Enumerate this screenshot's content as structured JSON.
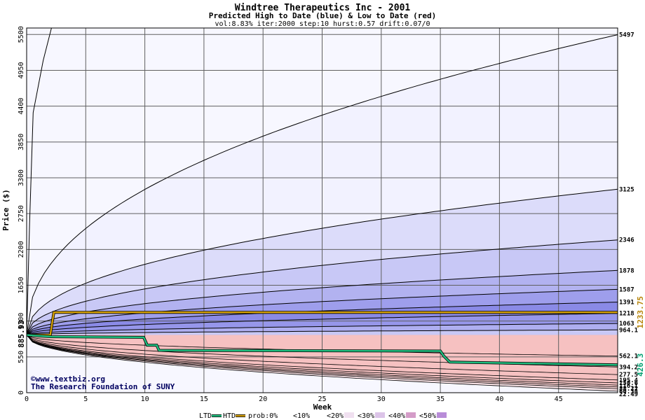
{
  "chart_data": {
    "type": "area",
    "title": "Windtree Therapeutics Inc - 2001",
    "subtitle": "Predicted High to Date (blue) &  Low to Date (red)",
    "params": "vol:8.83% iter:2000 step:10 hurst:0.57 drift:0.07/0",
    "xlabel": "Week",
    "ylabel": "Price ($)",
    "xlim": [
      0,
      50
    ],
    "ylim": [
      0,
      5600
    ],
    "x_ticks": [
      0,
      5,
      10,
      15,
      20,
      25,
      30,
      35,
      40,
      45
    ],
    "y_ticks": [
      0,
      550,
      1100,
      1650,
      2200,
      2750,
      3300,
      3850,
      4400,
      4950,
      5500
    ],
    "start_price": 885.93,
    "start_price_label": "885.93",
    "credit_lines": [
      "©www.textbiz.org",
      "The Research Foundation of SUNY"
    ],
    "right_value_labels": [
      {
        "label": "1233.75",
        "value": 1233.75,
        "color": "#b8860b"
      },
      {
        "label": "426.3",
        "value": 426.3,
        "color": "#00a070"
      }
    ],
    "high_percentiles": [
      {
        "label": "5497",
        "final": 5497
      },
      {
        "label": "3125",
        "final": 3125
      },
      {
        "label": "2346",
        "final": 2346
      },
      {
        "label": "1878",
        "final": 1878
      },
      {
        "label": "1587",
        "final": 1587
      },
      {
        "label": "1391",
        "final": 1391
      },
      {
        "label": "1218",
        "final": 1218
      },
      {
        "label": "1063",
        "final": 1063
      },
      {
        "label": "964.1",
        "final": 964.1
      }
    ],
    "low_percentiles": [
      {
        "label": "562.1",
        "final": 562.1
      },
      {
        "label": "394.2",
        "final": 394.2
      },
      {
        "label": "277.5",
        "final": 277.5
      },
      {
        "label": "195.4",
        "final": 195.4
      },
      {
        "label": "150.6",
        "final": 150.6
      },
      {
        "label": "116.1",
        "final": 116.1
      },
      {
        "label": "88.22",
        "final": 88.22
      },
      {
        "label": "60.34",
        "final": 60.34
      },
      {
        "label": "22.49",
        "final": 22.49
      }
    ],
    "series": [
      {
        "name": "HTD",
        "color": "#d4a000",
        "points": [
          [
            0,
            885.93
          ],
          [
            2,
            886
          ],
          [
            2.3,
            1233.75
          ],
          [
            50,
            1233.75
          ]
        ]
      },
      {
        "name": "LTD",
        "color": "#20c080",
        "points": [
          [
            0,
            885.93
          ],
          [
            2,
            860
          ],
          [
            9.9,
            850
          ],
          [
            10.2,
            730
          ],
          [
            11,
            730
          ],
          [
            11.2,
            650
          ],
          [
            35,
            640
          ],
          [
            35.3,
            560
          ],
          [
            35.8,
            470
          ],
          [
            50,
            426.3
          ]
        ]
      }
    ],
    "band_colors": {
      "high": [
        "#f2f2ff",
        "#dcdcfa",
        "#c8c8f6",
        "#b2b2f0",
        "#9e9eec",
        "#8a8ae6",
        "#9696ea",
        "#aeaef0",
        "#c8c8f6"
      ],
      "low": [
        "#fff0f0",
        "#fcdcdc",
        "#f8c8c8",
        "#f4b4b4",
        "#f0a0a0",
        "#ee9494",
        "#f0a4a4",
        "#f4baba",
        "#f8d0d0"
      ]
    },
    "legend": {
      "items": [
        "LTD",
        "HTD",
        "prob:0%",
        "<10%",
        "<20%",
        "<30%",
        "<40%",
        "<50%"
      ],
      "colors": [
        "#20c080",
        "#d4a000",
        "#ffffff",
        "#ffffff",
        "#f0e0f0",
        "#dcc4e8",
        "#d49cc8",
        "#b88cd8"
      ]
    },
    "grid": true
  }
}
